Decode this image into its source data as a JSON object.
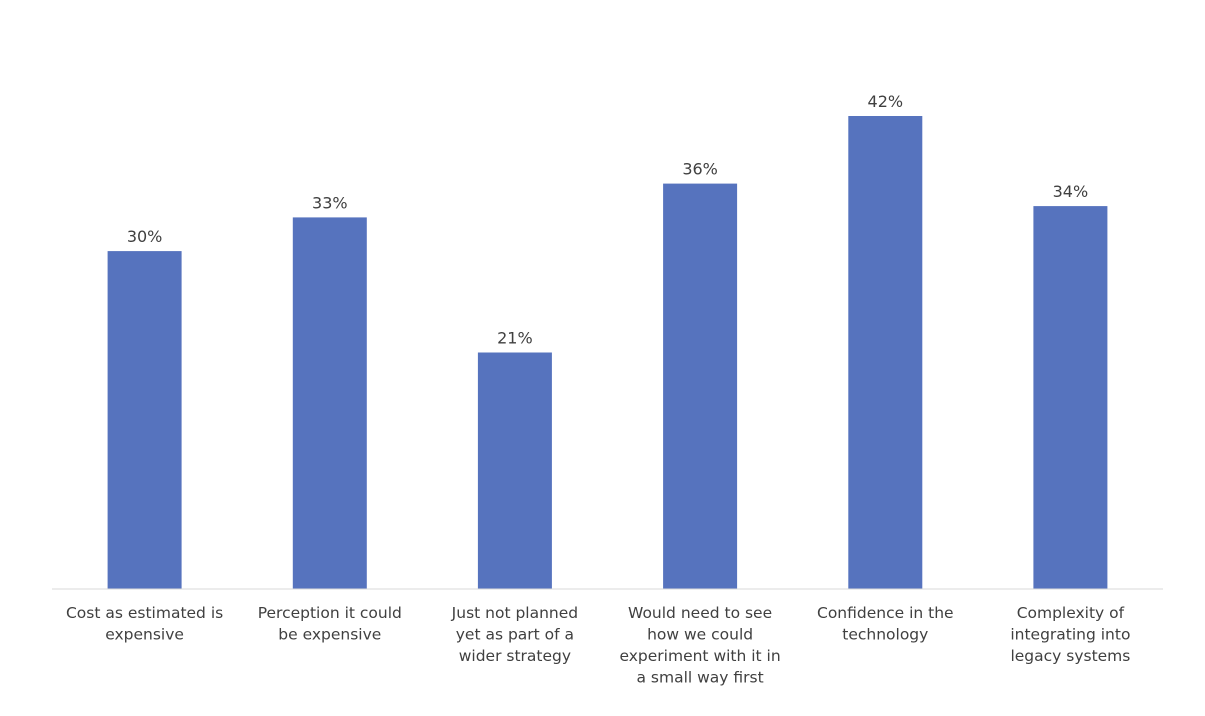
{
  "chart_data": {
    "type": "bar",
    "title": "",
    "xlabel": "",
    "ylabel": "",
    "categories": [
      [
        "Cost as estimated is",
        "expensive"
      ],
      [
        "Perception it could",
        "be expensive"
      ],
      [
        "Just not planned",
        "yet as part of a",
        "wider strategy"
      ],
      [
        "Would need to see",
        "how we could",
        "experiment with it in",
        "a small way first"
      ],
      [
        "Confidence in the",
        "technology"
      ],
      [
        "Complexity of",
        "integrating into",
        "legacy systems"
      ]
    ],
    "values": [
      30,
      33,
      21,
      36,
      42,
      34
    ],
    "value_labels": [
      "30%",
      "33%",
      "21%",
      "36%",
      "42%",
      "34%"
    ],
    "unit": "%",
    "ylim": [
      0,
      42
    ],
    "grid": false,
    "bar_color": "#5673BE",
    "axis_color": "#D9D9D9",
    "text_color": "#404040"
  }
}
